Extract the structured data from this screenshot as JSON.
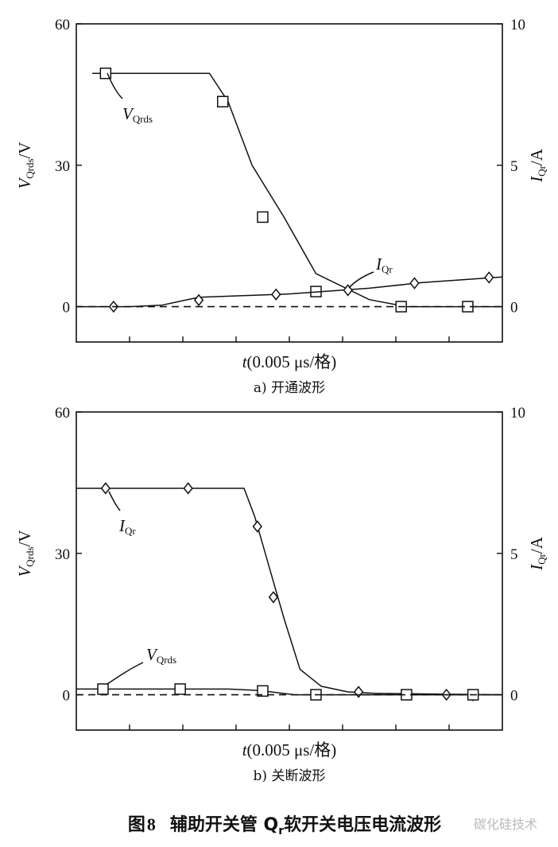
{
  "figure": {
    "caption_prefix": "图",
    "caption_number": "8",
    "caption_text_1": "辅助开关管 Q",
    "caption_sub": "r",
    "caption_text_2": "软开关电压电流波形",
    "watermark": "碳化硅技术"
  },
  "chart_data": [
    {
      "type": "line",
      "caption": "a)  开通波形",
      "xlabel": "t(0.005  μs/格)",
      "ylabel_left": "VQrds/V",
      "ylabel_right": "IQr/A",
      "ylim_left": [
        -7.5,
        60
      ],
      "yticks_left": [
        0,
        30,
        60
      ],
      "ylim_right": [
        -1.25,
        10
      ],
      "yticks_right": [
        0,
        5,
        10
      ],
      "x_divisions": 8,
      "series": [
        {
          "name": "VQrds",
          "axis": "left",
          "marker": "square",
          "x": [
            0.3,
            1.25,
            2.5,
            2.85,
            3.3,
            3.9,
            4.5,
            5.5,
            6.2,
            6.95,
            8.0
          ],
          "y": [
            49.5,
            49.5,
            49.5,
            43.5,
            30,
            19,
            7,
            1.5,
            0,
            0,
            0
          ],
          "markers_x": [
            0.55,
            2.75,
            3.5,
            4.5,
            6.1,
            7.35
          ],
          "markers_y": [
            49.5,
            43.5,
            19,
            3.2,
            0,
            0
          ]
        },
        {
          "name": "IQr",
          "axis": "right",
          "marker": "diamond",
          "x": [
            0,
            1.0,
            1.6,
            2.3,
            4.0,
            5.5,
            6.5,
            8.0
          ],
          "y": [
            0,
            0,
            0.05,
            0.33,
            0.45,
            0.65,
            0.85,
            1.05
          ],
          "markers_x": [
            0.7,
            2.3,
            3.75,
            5.1,
            6.35,
            7.75
          ],
          "markers_y": [
            0,
            0.23,
            0.43,
            0.58,
            0.83,
            1.03
          ]
        },
        {
          "name": "zero",
          "axis": "left",
          "style": "dashed",
          "x": [
            0,
            8
          ],
          "y": [
            0,
            0
          ]
        }
      ],
      "annotations": [
        {
          "main": "V",
          "sub": "Qrds"
        },
        {
          "main": "I",
          "sub": "Qr"
        }
      ]
    },
    {
      "type": "line",
      "caption": "b)  关断波形",
      "xlabel": "t(0.005  μs/格)",
      "ylabel_left": "VQrds/V",
      "ylabel_right": "IQr/A",
      "ylim_left": [
        -7.5,
        60
      ],
      "yticks_left": [
        0,
        30,
        60
      ],
      "ylim_right": [
        -1.25,
        10
      ],
      "yticks_right": [
        0,
        5,
        10
      ],
      "x_divisions": 8,
      "series": [
        {
          "name": "IQr",
          "axis": "right",
          "marker": "diamond",
          "x": [
            0,
            3.15,
            3.35,
            3.7,
            3.9,
            4.2,
            4.6,
            5.1,
            5.6,
            8.0
          ],
          "y": [
            7.3,
            7.3,
            6.3,
            4.0,
            2.7,
            0.9,
            0.3,
            0.1,
            0.05,
            0
          ],
          "markers_x": [
            0.55,
            2.1,
            3.4,
            3.7,
            5.3,
            6.95,
            7.45
          ],
          "markers_y": [
            7.3,
            7.3,
            5.95,
            3.45,
            0.1,
            0.0,
            -0.02
          ]
        },
        {
          "name": "VQrds",
          "axis": "left",
          "marker": "square",
          "x": [
            0,
            2.85,
            3.45,
            4.1,
            8.0
          ],
          "y": [
            1.2,
            1.2,
            0.9,
            0,
            0
          ],
          "markers_x": [
            0.5,
            1.95,
            3.5,
            4.5,
            6.2,
            7.45
          ],
          "markers_y": [
            1.2,
            1.2,
            0.8,
            0,
            0,
            0
          ]
        },
        {
          "name": "zero",
          "axis": "left",
          "style": "dashed",
          "x": [
            0,
            8
          ],
          "y": [
            0,
            0
          ]
        }
      ],
      "annotations": [
        {
          "main": "I",
          "sub": "Qr"
        },
        {
          "main": "V",
          "sub": "Qrds"
        }
      ]
    }
  ]
}
